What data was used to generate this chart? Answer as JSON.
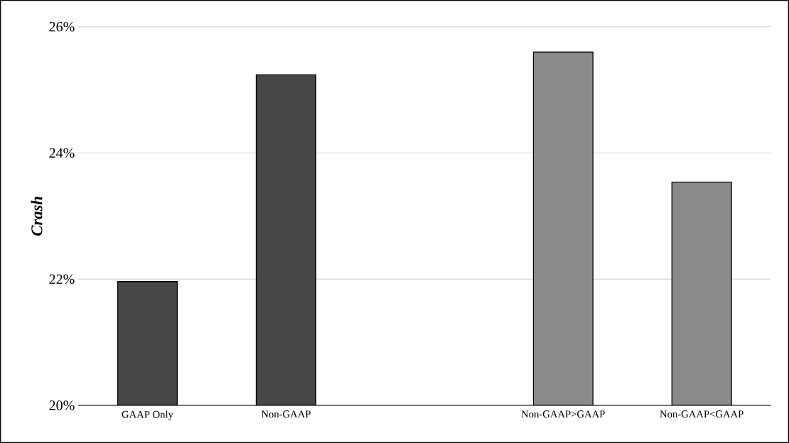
{
  "chart_data": {
    "type": "bar",
    "ylabel": "Crash",
    "categories": [
      "GAAP Only",
      "Non-GAAP",
      null,
      "Non-GAAP>GAAP",
      "Non-GAAP<GAAP"
    ],
    "values": [
      21.96,
      25.24,
      null,
      25.6,
      23.54
    ],
    "colors": [
      "#474747",
      "#474747",
      "#474747",
      "#8a8a8a",
      "#8a8a8a"
    ],
    "ylim": [
      20,
      26
    ],
    "yticks": [
      {
        "value": 20,
        "label": "20%"
      },
      {
        "value": 22,
        "label": "22%"
      },
      {
        "value": 24,
        "label": "24%"
      },
      {
        "value": 26,
        "label": "26%"
      }
    ],
    "grid": "y"
  }
}
